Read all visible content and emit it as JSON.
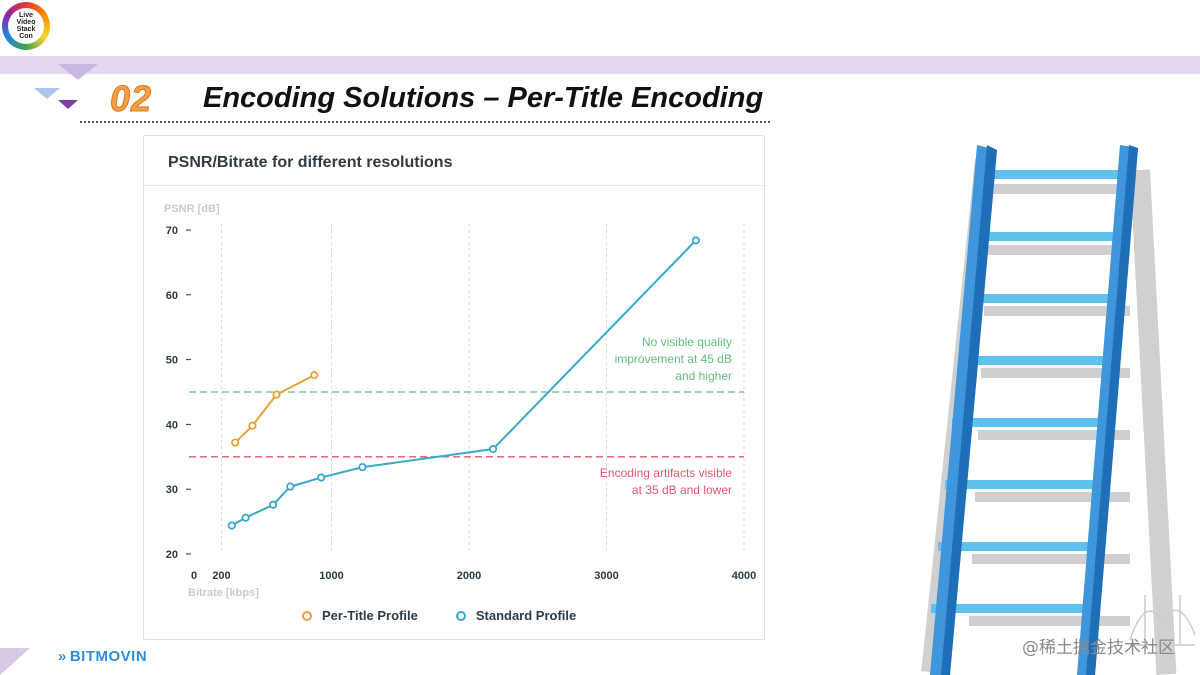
{
  "header": {
    "logo_text": [
      "Live",
      "Video",
      "Stack",
      "Con"
    ],
    "section_number": "02",
    "title": "Encoding Solutions – Per-Title Encoding"
  },
  "colors": {
    "per_title": "#e8a23a",
    "standard": "#3aa8c8",
    "threshold_high": "#5fbf7f",
    "threshold_low": "#e0586e",
    "grid": "#d5dade",
    "axis_text": "#2f3b45",
    "axis_label": "#c7ccd0"
  },
  "chart_data": {
    "type": "line",
    "title": "PSNR/Bitrate for different resolutions",
    "xlabel": "Bitrate [kbps]",
    "ylabel": "PSNR [dB]",
    "xlim": [
      0,
      4000
    ],
    "ylim": [
      20,
      70
    ],
    "x_ticks": [
      0,
      200,
      1000,
      2000,
      3000,
      4000
    ],
    "y_ticks": [
      20,
      30,
      40,
      50,
      60,
      70
    ],
    "grid": true,
    "legend": "bottom",
    "series": [
      {
        "name": "Per-Title Profile",
        "color": "#e8a23a",
        "points": [
          [
            300,
            37.2
          ],
          [
            425,
            39.8
          ],
          [
            600,
            44.6
          ],
          [
            875,
            47.6
          ]
        ]
      },
      {
        "name": "Standard Profile",
        "color": "#3aa8c8",
        "points": [
          [
            275,
            24.4
          ],
          [
            375,
            25.6
          ],
          [
            575,
            27.6
          ],
          [
            700,
            30.4
          ],
          [
            925,
            31.8
          ],
          [
            1225,
            33.4
          ],
          [
            2175,
            36.2
          ],
          [
            3650,
            68.4
          ]
        ]
      }
    ],
    "thresholds": [
      {
        "y": 45,
        "color": "#5fbf7f",
        "label": [
          "No visible quality",
          "improvement at 45 dB",
          "and higher"
        ]
      },
      {
        "y": 35,
        "color": "#e0586e",
        "label": [
          "Encoding artifacts visible",
          "at 35 dB and lower"
        ]
      }
    ]
  },
  "footer": {
    "brand": "BITMOVIN",
    "watermark": "@稀土掘金技术社区"
  }
}
